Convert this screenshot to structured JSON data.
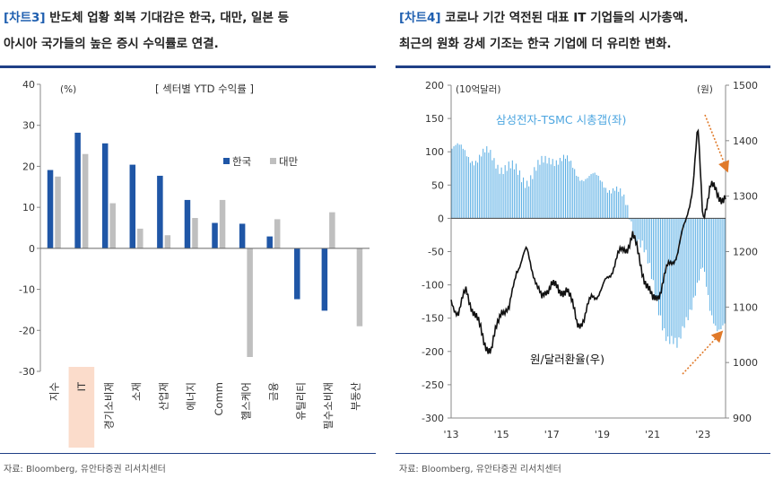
{
  "left": {
    "tag": "[차트3]",
    "caption_rest": " 반도체 업황 회복 기대감은 한국, 대만, 일본 등",
    "caption_line2": "아시아 국가들의 높은 증시 수익률로 연결.",
    "source": "자료: Bloomberg, 유안타증권 리서치센터"
  },
  "right": {
    "tag": "[차트4]",
    "caption_rest": " 코로나 기간 역전된 대표 IT 기업들의 시가총액.",
    "caption_line2": "최근의 원화 강세 기조는 한국 기업에 더 유리한 변화.",
    "source": "자료: Bloomberg, 유안타증권 리서치센터"
  },
  "chart_data": [
    {
      "type": "bar",
      "title": "[ 섹터별 YTD 수익률 ]",
      "ylabel": "(%)",
      "ylim": [
        -30,
        40
      ],
      "yticks": [
        40,
        30,
        20,
        10,
        0,
        -10,
        -20,
        -30
      ],
      "categories": [
        "지수",
        "IT",
        "경기소비재",
        "소재",
        "산업재",
        "에너지",
        "Comm",
        "헬스케어",
        "금융",
        "유틸리티",
        "필수소비재",
        "부동산"
      ],
      "highlight_category": "IT",
      "series": [
        {
          "name": "한국",
          "color": "#1f56a6",
          "values": [
            19.1,
            28.2,
            25.6,
            20.4,
            17.7,
            11.8,
            6.2,
            6.0,
            2.9,
            -12.4,
            -15.2,
            null
          ]
        },
        {
          "name": "대만",
          "color": "#bfbfbf",
          "values": [
            17.5,
            23.0,
            11.0,
            4.8,
            3.2,
            7.4,
            11.8,
            -26.5,
            7.1,
            null,
            8.8,
            -19.0
          ]
        }
      ],
      "legend": "center-right",
      "grid": false
    },
    {
      "type": "bar",
      "annotation_bar": "삼성전자-TSMC 시총갭(좌)",
      "annotation_line": "원/달러환율(우)",
      "ylabel_left": "(10억달러)",
      "ylabel_right": "(원)",
      "ylim_left": [
        -300,
        200
      ],
      "yticks_left": [
        200,
        150,
        100,
        50,
        0,
        -50,
        -100,
        -150,
        -200,
        -250,
        -300
      ],
      "ylim_right": [
        900,
        1500
      ],
      "yticks_right": [
        1500,
        1400,
        1300,
        1200,
        1100,
        1000,
        900
      ],
      "xlim": [
        2013,
        2023.9
      ],
      "xticks": [
        "'13",
        "'15",
        "'17",
        "'19",
        "'21",
        "'23"
      ],
      "series": [
        {
          "name": "삼성전자-TSMC 시총갭(좌)",
          "axis": "left",
          "color": "#5aaee4",
          "x": [
            2013,
            2013.5,
            2014,
            2014.5,
            2015,
            2015.5,
            2016,
            2016.5,
            2017,
            2017.5,
            2018,
            2018.5,
            2019,
            2019.5,
            2020,
            2020.3,
            2020.6,
            2021,
            2021.3,
            2021.6,
            2022,
            2022.3,
            2022.6,
            2023,
            2023.3,
            2023.6
          ],
          "y": [
            105,
            100,
            90,
            95,
            80,
            70,
            60,
            75,
            95,
            85,
            70,
            60,
            55,
            45,
            15,
            -20,
            -40,
            -100,
            -140,
            -180,
            -200,
            -150,
            -120,
            -80,
            -140,
            -160
          ]
        },
        {
          "name": "원/달러환율(우)",
          "axis": "right",
          "color": "#111111",
          "x": [
            2013,
            2013.3,
            2013.6,
            2014,
            2014.3,
            2014.6,
            2015,
            2015.3,
            2015.6,
            2016,
            2016.3,
            2016.6,
            2017,
            2017.3,
            2017.6,
            2018,
            2018.3,
            2018.6,
            2019,
            2019.3,
            2019.6,
            2020,
            2020.2,
            2020.4,
            2020.7,
            2021,
            2021.3,
            2021.6,
            2022,
            2022.3,
            2022.6,
            2022.8,
            2023,
            2023.3,
            2023.6
          ],
          "y": [
            1110,
            1090,
            1130,
            1080,
            1040,
            1020,
            1100,
            1090,
            1170,
            1200,
            1160,
            1110,
            1150,
            1120,
            1140,
            1070,
            1080,
            1120,
            1130,
            1160,
            1190,
            1210,
            1230,
            1200,
            1150,
            1110,
            1130,
            1170,
            1200,
            1250,
            1320,
            1420,
            1260,
            1320,
            1300
          ]
        }
      ]
    }
  ]
}
